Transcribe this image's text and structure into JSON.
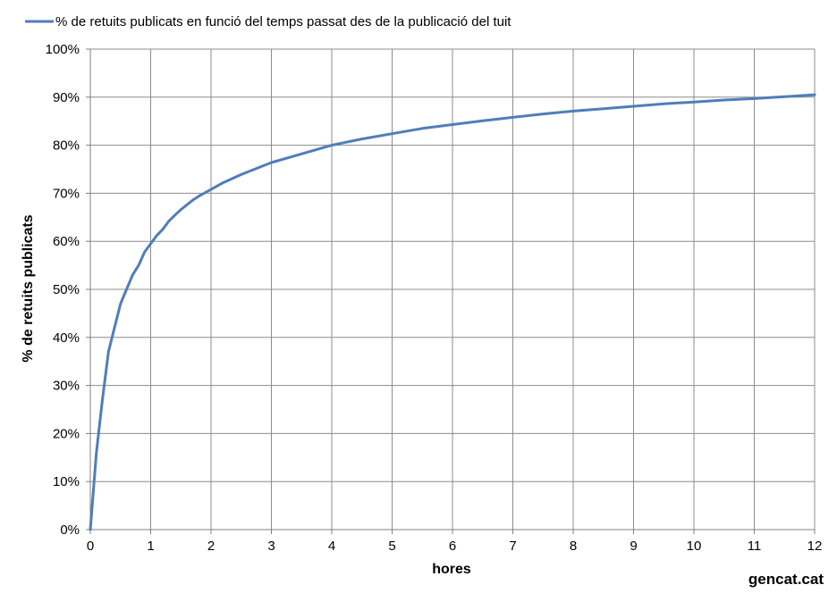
{
  "colors": {
    "series": "#4f7eb9",
    "grid": "#8c8c8c",
    "axis": "#808080",
    "text": "#000000"
  },
  "credit": "gencat.cat",
  "chart_data": {
    "type": "line",
    "title": "",
    "xlabel": "hores",
    "ylabel": "% de retuits publicats",
    "xlim": [
      0,
      12
    ],
    "ylim": [
      0,
      100
    ],
    "x_ticks": [
      "0",
      "1",
      "2",
      "3",
      "4",
      "5",
      "6",
      "7",
      "8",
      "9",
      "10",
      "11",
      "12"
    ],
    "y_ticks": [
      "0%",
      "10%",
      "20%",
      "30%",
      "40%",
      "50%",
      "60%",
      "70%",
      "80%",
      "90%",
      "100%"
    ],
    "grid": true,
    "legend_position": "top-left",
    "series": [
      {
        "name": "% de retuits publicats en funció del temps passat des de la publicació del tuit",
        "x": [
          0,
          0.1,
          0.2,
          0.3,
          0.4,
          0.5,
          0.6,
          0.7,
          0.8,
          0.9,
          1.0,
          1.1,
          1.2,
          1.3,
          1.4,
          1.5,
          1.6,
          1.7,
          1.8,
          2.0,
          2.2,
          2.5,
          3.0,
          3.5,
          4.0,
          4.5,
          5.0,
          5.5,
          6.0,
          6.5,
          7.0,
          7.5,
          8.0,
          8.5,
          9.0,
          9.5,
          10.0,
          10.5,
          11.0,
          11.5,
          12.0
        ],
        "y": [
          0,
          16,
          27,
          37,
          42,
          47,
          50,
          53,
          55,
          57.8,
          59.5,
          61.2,
          62.5,
          64.2,
          65.4,
          66.6,
          67.6,
          68.6,
          69.4,
          70.8,
          72.2,
          73.9,
          76.4,
          78.2,
          80.0,
          81.3,
          82.4,
          83.5,
          84.3,
          85.1,
          85.8,
          86.5,
          87.1,
          87.6,
          88.1,
          88.6,
          89.0,
          89.4,
          89.7,
          90.1,
          90.5
        ]
      }
    ]
  }
}
